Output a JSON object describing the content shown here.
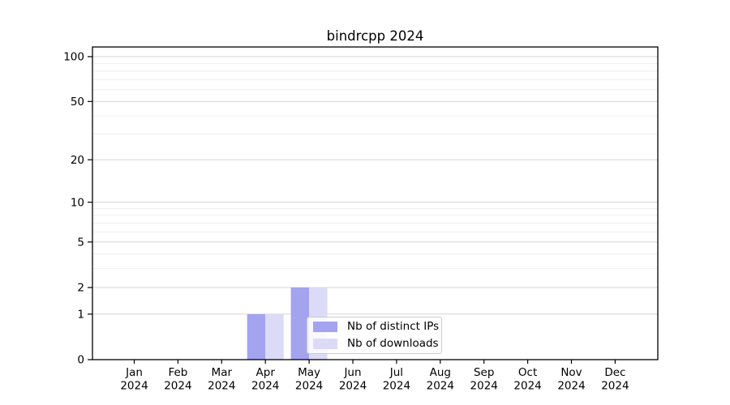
{
  "chart_data": {
    "type": "bar",
    "title": "bindrcpp 2024",
    "categories": [
      "Jan 2024",
      "Feb 2024",
      "Mar 2024",
      "Apr 2024",
      "May 2024",
      "Jun 2024",
      "Jul 2024",
      "Aug 2024",
      "Sep 2024",
      "Oct 2024",
      "Nov 2024",
      "Dec 2024"
    ],
    "series": [
      {
        "name": "Nb of distinct IPs",
        "color": "#a3a3f0",
        "values": [
          0,
          0,
          0,
          1,
          2,
          0,
          0,
          0,
          0,
          0,
          0,
          0
        ]
      },
      {
        "name": "Nb of downloads",
        "color": "#dbdbf8",
        "values": [
          0,
          0,
          0,
          1,
          2,
          0,
          0,
          0,
          0,
          0,
          0,
          0
        ]
      }
    ],
    "xlabel": "",
    "ylabel": "",
    "yscale": "log1p",
    "ylim": [
      0,
      116
    ],
    "yticks": [
      0,
      1,
      2,
      5,
      10,
      20,
      50,
      100
    ],
    "y_minor_gridlines": [
      3,
      4,
      6,
      7,
      8,
      9,
      30,
      40,
      60,
      70,
      80,
      90
    ],
    "grid": true,
    "legend_position": "lower center-right inside plot"
  },
  "colors": {
    "background": "#ffffff",
    "axis": "#000000",
    "tick_text": "#000000",
    "grid_major": "#cfcfcf",
    "grid_minor": "#ebebeb",
    "legend_border": "#cccccc"
  }
}
